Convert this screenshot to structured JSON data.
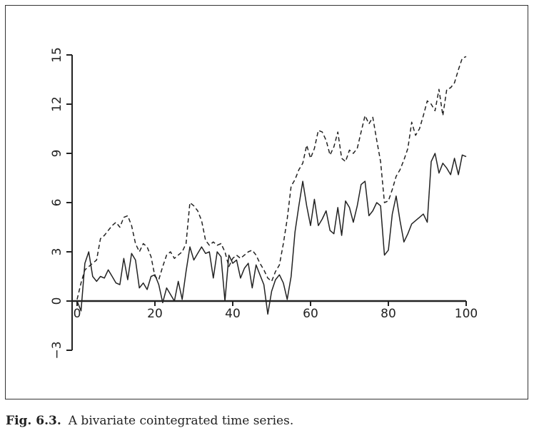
{
  "caption": {
    "label": "Fig. 6.3.",
    "text": "A bivariate cointegrated time series."
  },
  "chart_data": {
    "type": "line",
    "title": "",
    "xlabel": "",
    "ylabel": "",
    "xlim": [
      0,
      100
    ],
    "ylim": [
      -3,
      15
    ],
    "x_ticks": [
      0,
      20,
      40,
      60,
      80,
      100
    ],
    "y_ticks": [
      -3,
      0,
      3,
      6,
      9,
      12,
      15
    ],
    "x_tick_labels": [
      "0",
      "20",
      "40",
      "60",
      "80",
      "100"
    ],
    "y_tick_labels": [
      "−3",
      "0",
      "3",
      "6",
      "9",
      "12",
      "15"
    ],
    "grid": false,
    "legend": "none",
    "series": [
      {
        "name": "solid",
        "style": "solid",
        "color": "#222222",
        "x": [
          0,
          1,
          2,
          3,
          4,
          5,
          6,
          7,
          8,
          9,
          10,
          11,
          12,
          13,
          14,
          15,
          16,
          17,
          18,
          19,
          20,
          21,
          22,
          23,
          24,
          25,
          26,
          27,
          28,
          29,
          30,
          31,
          32,
          33,
          34,
          35,
          36,
          37,
          38,
          39,
          40,
          41,
          42,
          43,
          44,
          45,
          46,
          47,
          48,
          49,
          50,
          51,
          52,
          53,
          54,
          55,
          56,
          57,
          58,
          59,
          60,
          61,
          62,
          63,
          64,
          65,
          66,
          67,
          68,
          69,
          70,
          71,
          72,
          73,
          74,
          75,
          76,
          77,
          78,
          79,
          80,
          81,
          82,
          83,
          84,
          85,
          86,
          87,
          88,
          89,
          90,
          91,
          92,
          93,
          94,
          95,
          96,
          97,
          98,
          99,
          100
        ],
        "values": [
          0.0,
          -0.6,
          2.3,
          3.0,
          1.5,
          1.2,
          1.5,
          1.4,
          1.9,
          1.5,
          1.1,
          1.0,
          2.6,
          1.3,
          2.9,
          2.5,
          0.8,
          1.1,
          0.7,
          1.5,
          1.6,
          1.0,
          -0.1,
          0.8,
          0.4,
          0.0,
          1.2,
          0.1,
          1.8,
          3.3,
          2.5,
          2.9,
          3.3,
          2.9,
          3.0,
          1.4,
          3.0,
          2.7,
          0.0,
          2.8,
          2.3,
          2.5,
          1.4,
          2.0,
          2.3,
          0.8,
          2.2,
          1.6,
          1.0,
          -0.8,
          0.6,
          1.3,
          1.6,
          1.1,
          0.1,
          1.5,
          4.2,
          5.8,
          7.3,
          5.8,
          4.6,
          6.2,
          4.6,
          5.0,
          5.5,
          4.3,
          4.1,
          5.7,
          4.0,
          6.1,
          5.7,
          4.8,
          5.8,
          7.1,
          7.3,
          5.2,
          5.5,
          6.0,
          5.8,
          2.8,
          3.1,
          5.3,
          6.4,
          4.9,
          3.6,
          4.1,
          4.7,
          4.9,
          5.1,
          5.3,
          4.8,
          8.5,
          9.0,
          7.8,
          8.4,
          8.1,
          7.7,
          8.7,
          7.7,
          8.9,
          8.8
        ]
      },
      {
        "name": "dashed",
        "style": "dashed",
        "color": "#222222",
        "x": [
          0,
          1,
          2,
          3,
          4,
          5,
          6,
          7,
          8,
          9,
          10,
          11,
          12,
          13,
          14,
          15,
          16,
          17,
          18,
          19,
          20,
          21,
          22,
          23,
          24,
          25,
          26,
          27,
          28,
          29,
          30,
          31,
          32,
          33,
          34,
          35,
          36,
          37,
          38,
          39,
          40,
          41,
          42,
          43,
          44,
          45,
          46,
          47,
          48,
          49,
          50,
          51,
          52,
          53,
          54,
          55,
          56,
          57,
          58,
          59,
          60,
          61,
          62,
          63,
          64,
          65,
          66,
          67,
          68,
          69,
          70,
          71,
          72,
          73,
          74,
          75,
          76,
          77,
          78,
          79,
          80,
          81,
          82,
          83,
          84,
          85,
          86,
          87,
          88,
          89,
          90,
          91,
          92,
          93,
          94,
          95,
          96,
          97,
          98,
          99,
          100
        ],
        "values": [
          0.1,
          1.1,
          1.9,
          2.1,
          2.3,
          2.5,
          3.8,
          4.0,
          4.3,
          4.6,
          4.8,
          4.5,
          5.1,
          5.2,
          4.6,
          3.5,
          3.0,
          3.5,
          3.3,
          2.7,
          1.5,
          1.3,
          2.1,
          2.8,
          3.0,
          2.6,
          2.8,
          3.0,
          3.5,
          6.0,
          5.8,
          5.5,
          4.9,
          3.7,
          3.4,
          3.6,
          3.4,
          3.5,
          3.0,
          2.1,
          2.6,
          2.8,
          2.6,
          2.8,
          3.0,
          3.1,
          2.8,
          2.3,
          1.9,
          1.4,
          1.2,
          1.8,
          2.2,
          3.5,
          5.0,
          7.0,
          7.4,
          8.0,
          8.4,
          9.5,
          8.7,
          9.3,
          10.4,
          10.3,
          9.8,
          8.9,
          9.4,
          10.3,
          8.7,
          8.5,
          9.2,
          9.0,
          9.3,
          10.3,
          11.3,
          10.8,
          11.2,
          9.8,
          8.5,
          6.0,
          6.1,
          6.8,
          7.6,
          8.0,
          8.6,
          9.3,
          10.9,
          10.1,
          10.5,
          11.3,
          12.2,
          12.0,
          11.6,
          12.9,
          11.3,
          12.9,
          13.0,
          13.3,
          14.1,
          14.8,
          14.9
        ]
      }
    ]
  }
}
